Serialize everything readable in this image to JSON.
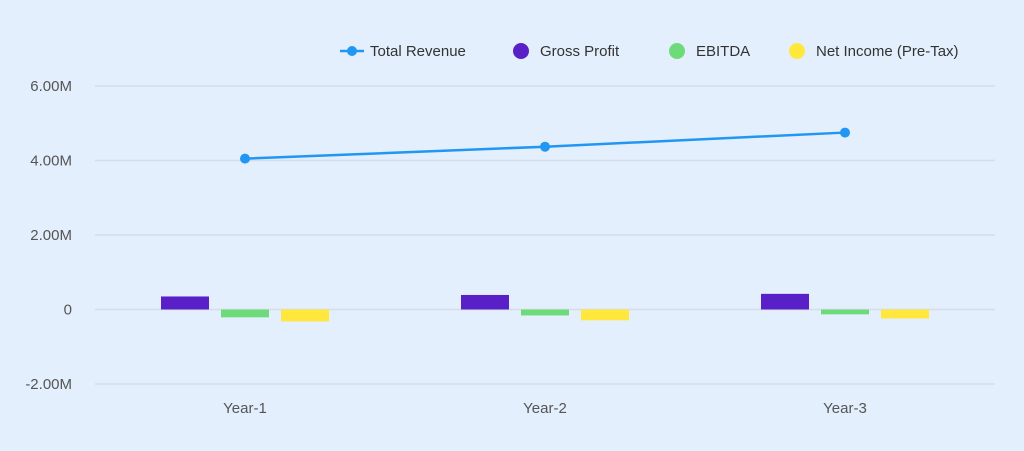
{
  "chart_data": {
    "type": "bar",
    "categories": [
      "Year-1",
      "Year-2",
      "Year-3"
    ],
    "ylim": [
      -2000000,
      6000000
    ],
    "yticks": [
      -2000000,
      0,
      2000000,
      4000000,
      6000000
    ],
    "ytick_labels": [
      "-2.00M",
      "0",
      "2.00M",
      "4.00M",
      "6.00M"
    ],
    "grid": true,
    "legend_position": "top-right",
    "series": [
      {
        "name": "Total Revenue",
        "type": "line",
        "color": "#2196f3",
        "values": [
          4050000,
          4370000,
          4750000
        ]
      },
      {
        "name": "Gross Profit",
        "type": "bar",
        "color": "#5a20c8",
        "values": [
          350000,
          390000,
          420000
        ]
      },
      {
        "name": "EBITDA",
        "type": "bar",
        "color": "#6edb7b",
        "values": [
          -210000,
          -160000,
          -130000
        ]
      },
      {
        "name": "Net Income (Pre-Tax)",
        "type": "bar",
        "color": "#ffe83b",
        "values": [
          -320000,
          -290000,
          -240000
        ]
      }
    ]
  }
}
